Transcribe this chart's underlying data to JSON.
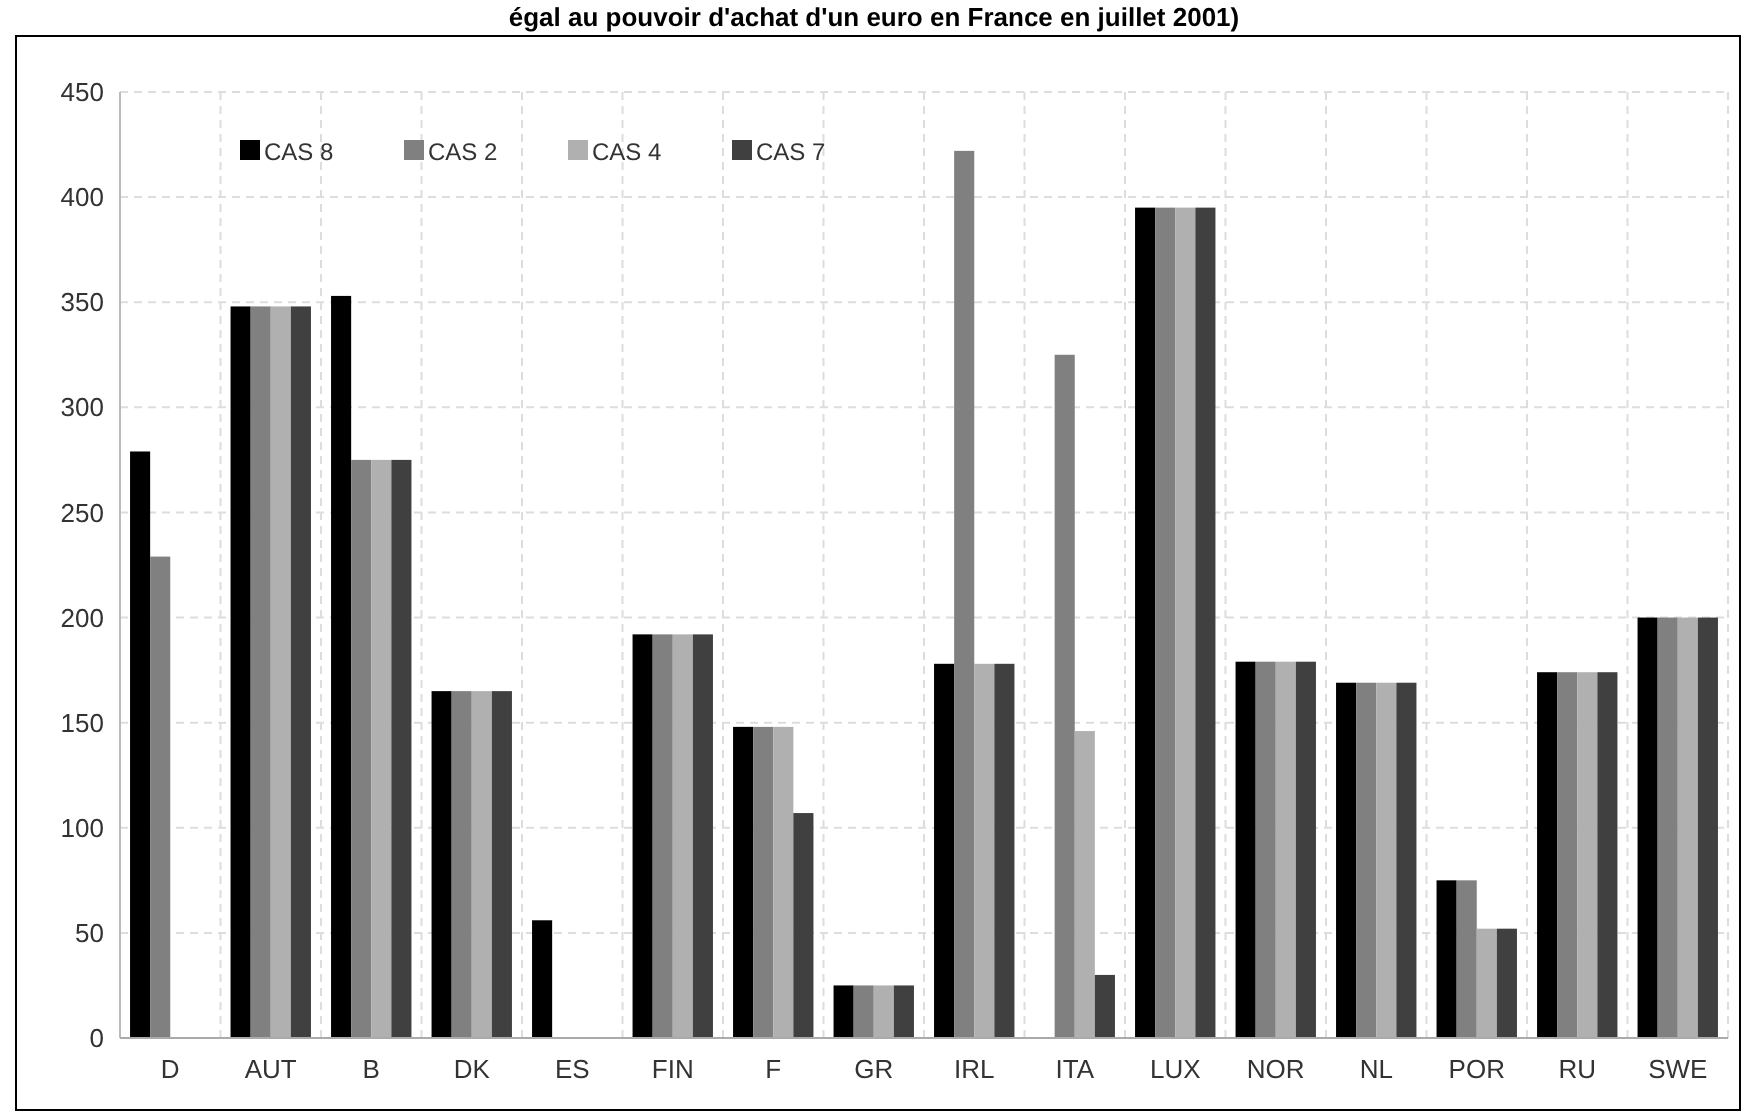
{
  "chart_data": {
    "type": "bar",
    "title": "égal au pouvoir d'achat d'un euro en France en juillet 2001)",
    "categories": [
      "D",
      "AUT",
      "B",
      "DK",
      "ES",
      "FIN",
      "F",
      "GR",
      "IRL",
      "ITA",
      "LUX",
      "NOR",
      "NL",
      "POR",
      "RU",
      "SWE"
    ],
    "series": [
      {
        "name": "CAS 8",
        "color": "#000000",
        "values": [
          279,
          348,
          353,
          165,
          56,
          192,
          148,
          25,
          178,
          null,
          395,
          179,
          169,
          75,
          174,
          200
        ]
      },
      {
        "name": "CAS 2",
        "color": "#808080",
        "values": [
          229,
          348,
          275,
          165,
          null,
          192,
          148,
          25,
          422,
          325,
          395,
          179,
          169,
          75,
          174,
          200
        ]
      },
      {
        "name": "CAS 4",
        "color": "#b0b0b0",
        "values": [
          null,
          348,
          275,
          165,
          null,
          192,
          148,
          25,
          178,
          146,
          395,
          179,
          169,
          52,
          174,
          200
        ]
      },
      {
        "name": "CAS 7",
        "color": "#404040",
        "values": [
          null,
          348,
          275,
          165,
          null,
          192,
          107,
          25,
          178,
          30,
          395,
          179,
          169,
          52,
          174,
          200
        ]
      }
    ],
    "ylim": [
      0,
      450
    ],
    "yticks": [
      0,
      50,
      100,
      150,
      200,
      250,
      300,
      350,
      400,
      450
    ],
    "grid": true,
    "legend": "top left"
  }
}
